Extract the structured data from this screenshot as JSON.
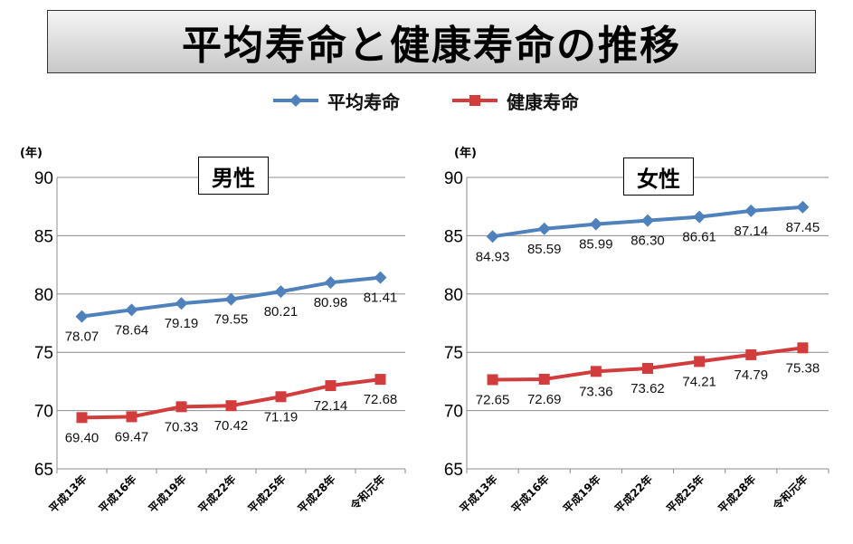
{
  "title": "平均寿命と健康寿命の推移",
  "legend": [
    {
      "label": "平均寿命",
      "color": "#4f81bd",
      "marker": "diamond"
    },
    {
      "label": "健康寿命",
      "color": "#d23c3c",
      "marker": "square"
    }
  ],
  "chart_data": [
    {
      "type": "line",
      "title": "男性",
      "ylabel": "(年)",
      "ylim": [
        65,
        90
      ],
      "yticks": [
        90,
        85,
        80,
        75,
        70,
        65
      ],
      "categories": [
        "平成13年",
        "平成16年",
        "平成19年",
        "平成22年",
        "平成25年",
        "平成28年",
        "令和元年"
      ],
      "series": [
        {
          "name": "平均寿命",
          "color": "#4f81bd",
          "marker": "diamond",
          "values": [
            78.07,
            78.64,
            79.19,
            79.55,
            80.21,
            80.98,
            81.41
          ],
          "labels": [
            "78.07",
            "78.64",
            "79.19",
            "79.55",
            "80.21",
            "80.98",
            "81.41"
          ]
        },
        {
          "name": "健康寿命",
          "color": "#d23c3c",
          "marker": "square",
          "values": [
            69.4,
            69.47,
            70.33,
            70.42,
            71.19,
            72.14,
            72.68
          ],
          "labels": [
            "69.40",
            "69.47",
            "70.33",
            "70.42",
            "71.19",
            "72.14",
            "72.68"
          ]
        }
      ],
      "grid": true
    },
    {
      "type": "line",
      "title": "女性",
      "ylabel": "(年)",
      "ylim": [
        65,
        90
      ],
      "yticks": [
        90,
        85,
        80,
        75,
        70,
        65
      ],
      "categories": [
        "平成13年",
        "平成16年",
        "平成19年",
        "平成22年",
        "平成25年",
        "平成28年",
        "令和元年"
      ],
      "series": [
        {
          "name": "平均寿命",
          "color": "#4f81bd",
          "marker": "diamond",
          "values": [
            84.93,
            85.59,
            85.99,
            86.3,
            86.61,
            87.14,
            87.45
          ],
          "labels": [
            "84.93",
            "85.59",
            "85.99",
            "86.30",
            "86.61",
            "87.14",
            "87.45"
          ]
        },
        {
          "name": "健康寿命",
          "color": "#d23c3c",
          "marker": "square",
          "values": [
            72.65,
            72.69,
            73.36,
            73.62,
            74.21,
            74.79,
            75.38
          ],
          "labels": [
            "72.65",
            "72.69",
            "73.36",
            "73.62",
            "74.21",
            "74.79",
            "75.38"
          ]
        }
      ],
      "grid": true
    }
  ]
}
